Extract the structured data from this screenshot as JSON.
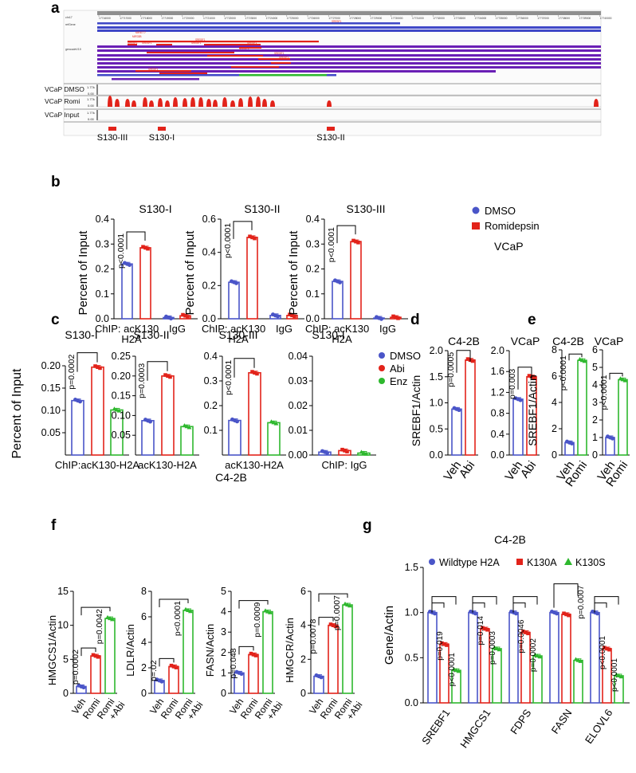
{
  "colors": {
    "blue": "#4a55c8",
    "red": "#e2231a",
    "green": "#2eb82e",
    "purple": "#6a1fb5",
    "navy": "#3f47c7",
    "grey": "#888888"
  },
  "panel_a": {
    "label": "a",
    "ruler_ticks": [
      "17716000",
      "17717000",
      "17718000",
      "17719000",
      "17720000",
      "17721000",
      "17722000",
      "17723000",
      "17724000",
      "17725000",
      "17726000",
      "17727000",
      "17728000",
      "17729000",
      "17730000",
      "17731000",
      "17732000",
      "17733000",
      "17734000",
      "17735000",
      "17736000",
      "17737000",
      "17738000",
      "17739000",
      "17740000"
    ],
    "chr_label": "chr17",
    "refseq_label": "refGene",
    "gencode_label": "gencodeV19",
    "gene_names": [
      "SREBF1",
      "MIR6777",
      "MIR33B",
      "SREBF1",
      "SREBF1",
      "SREBF1",
      "SREBF1",
      "SREBF1",
      "SREBF1",
      "SREBF1",
      "SREBF1",
      "SREBF1",
      "SREBF1"
    ],
    "tracks": [
      {
        "name": "VCaP DMSO",
        "max": "1.77k",
        "min": "0.00"
      },
      {
        "name": "VCaP Romi",
        "max": "1.77k",
        "min": "0.00"
      },
      {
        "name": "VCaP Input",
        "max": "1.77k",
        "min": "0.00"
      }
    ],
    "regions": [
      "S130-III",
      "S130-I",
      "S130-II"
    ]
  },
  "chart_data": [
    {
      "panel": "b",
      "type": "bar",
      "title": "S130-I",
      "ylabel": "Percent of Input",
      "ylim": [
        0,
        0.4
      ],
      "ticks": [
        "0.0",
        "0.1",
        "0.2",
        "0.3",
        "0.4"
      ],
      "groups": [
        "ChIP: acK130\nH2A",
        "IgG"
      ],
      "series": [
        {
          "name": "DMSO",
          "values": [
            0.22,
            0.005
          ]
        },
        {
          "name": "Romidepsin",
          "values": [
            0.285,
            0.012
          ]
        }
      ],
      "annotation": "p<0.0001"
    },
    {
      "panel": "b",
      "type": "bar",
      "title": "S130-II",
      "ylabel": "Percent of Input",
      "ylim": [
        0,
        0.6
      ],
      "ticks": [
        "0.0",
        "0.2",
        "0.4",
        "0.6"
      ],
      "groups": [
        "ChIP: acK130\nH2A",
        "IgG"
      ],
      "series": [
        {
          "name": "DMSO",
          "values": [
            0.22,
            0.02
          ]
        },
        {
          "name": "Romidepsin",
          "values": [
            0.49,
            0.02
          ]
        }
      ],
      "annotation": "p<0.0001"
    },
    {
      "panel": "b",
      "type": "bar",
      "title": "S130-III",
      "ylabel": "Percent of Input",
      "ylim": [
        0,
        0.4
      ],
      "ticks": [
        "0.0",
        "0.1",
        "0.2",
        "0.3",
        "0.4"
      ],
      "groups": [
        "ChIP: acK130\nH2A",
        "IgG"
      ],
      "series": [
        {
          "name": "DMSO",
          "values": [
            0.15,
            0.003
          ]
        },
        {
          "name": "Romidepsin",
          "values": [
            0.31,
            0.006
          ]
        }
      ],
      "annotation": "p<0.0001"
    },
    {
      "panel": "c",
      "type": "bar",
      "title": "S130-I",
      "ylabel": "Percent of Input",
      "ylim": [
        0,
        0.2
      ],
      "ticks": [
        "0.05",
        "0.10",
        "0.15",
        "0.20"
      ],
      "xlabel": "ChIP:acK130-H2A",
      "categories": [
        "DMSO",
        "Abi",
        "Enz"
      ],
      "values": [
        0.122,
        0.197,
        0.101
      ],
      "annotation": "p=0.0002"
    },
    {
      "panel": "c",
      "type": "bar",
      "title": "S130-II",
      "ylim": [
        0,
        0.25
      ],
      "ticks": [
        "0.05",
        "0.10",
        "0.15",
        "0.20",
        "0.25"
      ],
      "xlabel": "acK130-H2A",
      "categories": [
        "DMSO",
        "Abi",
        "Enz"
      ],
      "values": [
        0.087,
        0.2,
        0.072
      ],
      "annotation": "p=0.0003"
    },
    {
      "panel": "c",
      "type": "bar",
      "title": "S130-III",
      "ylim": [
        0,
        0.4
      ],
      "ticks": [
        "0.1",
        "0.2",
        "0.3",
        "0.4"
      ],
      "xlabel": "acK130-H2A",
      "categories": [
        "DMSO",
        "Abi",
        "Enz"
      ],
      "values": [
        0.14,
        0.333,
        0.131
      ],
      "annotation": "p<0.0001"
    },
    {
      "panel": "c",
      "type": "bar",
      "title": "S130-I",
      "ylim": [
        0,
        0.04
      ],
      "ticks": [
        "0.00",
        "0.01",
        "0.02",
        "0.03",
        "0.04"
      ],
      "xlabel": "ChIP: IgG",
      "categories": [
        "DMSO",
        "Abi",
        "Enz"
      ],
      "values": [
        0.0012,
        0.0018,
        0.0008
      ],
      "legend": [
        "DMSO",
        "Abi",
        "Enz"
      ],
      "footer": "C4-2B"
    },
    {
      "panel": "d",
      "type": "bar",
      "title": "C4-2B",
      "ylabel": "SREBF1/Actin",
      "ylim": [
        0,
        2.0
      ],
      "ticks": [
        "0.0",
        "0.5",
        "1.0",
        "1.5",
        "2.0"
      ],
      "categories": [
        "Veh",
        "Abi"
      ],
      "values": [
        0.88,
        1.82
      ],
      "annotation": "p=0.0005"
    },
    {
      "panel": "d",
      "type": "bar",
      "title": "VCaP",
      "ylim": [
        0,
        2.0
      ],
      "ticks": [
        "0.0",
        "0.4",
        "0.8",
        "1.2",
        "1.6",
        "2.0"
      ],
      "categories": [
        "Veh",
        "Abi"
      ],
      "values": [
        1.07,
        1.5
      ],
      "annotation": "p=0.003"
    },
    {
      "panel": "e",
      "type": "bar",
      "title": "C4-2B",
      "ylabel": "SREBF1/Actin",
      "ylim": [
        0,
        8
      ],
      "ticks": [
        "0",
        "2",
        "4",
        "6",
        "8"
      ],
      "categories": [
        "Veh",
        "Romi"
      ],
      "values": [
        0.95,
        7.2
      ],
      "annotation": "p<0.0001"
    },
    {
      "panel": "e",
      "type": "bar",
      "title": "VCaP",
      "ylim": [
        0,
        6
      ],
      "ticks": [
        "0",
        "1",
        "2",
        "3",
        "4",
        "5",
        "6"
      ],
      "categories": [
        "Veh",
        "Romi"
      ],
      "values": [
        1.0,
        4.3
      ],
      "annotation": "p<0.0001"
    },
    {
      "panel": "f",
      "type": "bar",
      "ylabel": "HMGCS1/Actin",
      "ylim": [
        0,
        15
      ],
      "ticks": [
        "0",
        "5",
        "10",
        "15"
      ],
      "categories": [
        "Veh",
        "Romi",
        "Romi\n+Abi"
      ],
      "values": [
        1.0,
        5.5,
        11.0
      ],
      "annotations": [
        "p=0.0002",
        "p=0.0042"
      ]
    },
    {
      "panel": "f",
      "type": "bar",
      "ylabel": "LDLR/Actin",
      "ylim": [
        0,
        8
      ],
      "ticks": [
        "0",
        "2",
        "4",
        "6",
        "8"
      ],
      "categories": [
        "Veh",
        "Romi",
        "Romi\n+Abi"
      ],
      "values": [
        1.0,
        2.1,
        6.5
      ],
      "annotations": [
        "p=.02",
        "p<0.0001"
      ]
    },
    {
      "panel": "f",
      "type": "bar",
      "ylabel": "FASN/Actin",
      "ylim": [
        0,
        5
      ],
      "ticks": [
        "0",
        "1",
        "2",
        "3",
        "4",
        "5"
      ],
      "categories": [
        "Veh",
        "Romi",
        "Romi\n+Abi"
      ],
      "values": [
        1.0,
        1.9,
        4.0
      ],
      "annotations": [
        "p=0.048",
        "p=0.0009"
      ]
    },
    {
      "panel": "f",
      "type": "bar",
      "ylabel": "HMGCR/Actin",
      "ylim": [
        0,
        6
      ],
      "ticks": [
        "0",
        "2",
        "4",
        "6"
      ],
      "categories": [
        "Veh",
        "Romi",
        "Romi\n+Abi"
      ],
      "values": [
        1.0,
        4.0,
        5.2
      ],
      "annotations": [
        "p=0.0078",
        "p=0.0007"
      ]
    },
    {
      "panel": "g",
      "type": "bar",
      "title": "C4-2B",
      "ylabel": "Gene/Actin",
      "ylim": [
        0,
        1.5
      ],
      "ticks": [
        "0.0",
        "0.5",
        "1.0",
        "1.5"
      ],
      "categories": [
        "SREBF1",
        "HMGCS1",
        "FDPS",
        "FASN",
        "ELOVL6"
      ],
      "series": [
        {
          "name": "Wildtype H2A",
          "values": [
            1.0,
            1.0,
            1.0,
            1.0,
            1.0
          ]
        },
        {
          "name": "K130A",
          "values": [
            0.65,
            0.82,
            0.78,
            0.98,
            0.6
          ]
        },
        {
          "name": "K130S",
          "values": [
            0.36,
            0.6,
            0.52,
            0.47,
            0.3
          ]
        }
      ],
      "annotations": [
        "p=0.019",
        "p<0.0001",
        "p=0.014",
        "p=0.0003",
        "p=0.0046",
        "p=0.0002",
        "p=0.0007",
        "p<0.0001",
        "p<0.0001"
      ]
    }
  ],
  "labels": {
    "b": "b",
    "c": "c",
    "d": "d",
    "e": "e",
    "f": "f",
    "g": "g",
    "vcap": "VCaP",
    "c42b": "C4-2B",
    "dmso": "DMSO",
    "romidepsin": "Romidepsin"
  }
}
